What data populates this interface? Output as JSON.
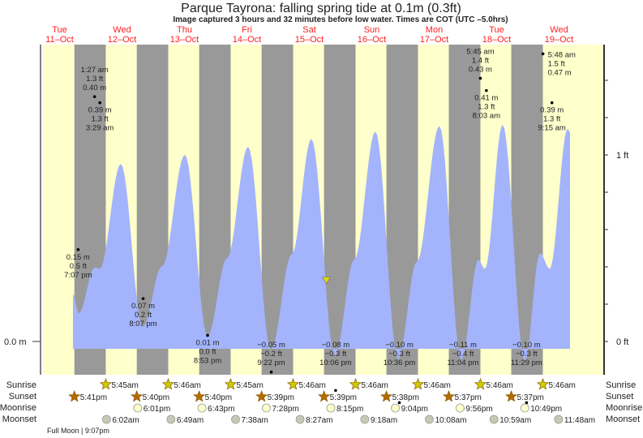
{
  "title": "Parque Tayrona: falling  spring tide at 0.1m (0.3ft)",
  "subtitle": "Image captured 3 hours and 32 minutes before low water. Times are COT (UTC –5.0hrs)",
  "colors": {
    "day": "#ffffcc",
    "night": "#999999",
    "water": "#a3b4fc",
    "day_label": "#ff2020",
    "sunrise": "#cccc00",
    "sunset": "#b36b00",
    "moonrise": "#ffffcc",
    "moonset": "#c8c8b4",
    "marker": "#e6d800"
  },
  "days": [
    {
      "name": "Tue",
      "date": "11–Oct"
    },
    {
      "name": "Wed",
      "date": "12–Oct"
    },
    {
      "name": "Thu",
      "date": "13–Oct"
    },
    {
      "name": "Fri",
      "date": "14–Oct"
    },
    {
      "name": "Sat",
      "date": "15–Oct"
    },
    {
      "name": "Sun",
      "date": "16–Oct"
    },
    {
      "name": "Mon",
      "date": "17–Oct"
    },
    {
      "name": "Tue",
      "date": "18–Oct"
    },
    {
      "name": "Wed",
      "date": "19–Oct"
    }
  ],
  "row_labels": {
    "sunrise": "Sunrise",
    "sunset": "Sunset",
    "moonrise": "Moonrise",
    "moonset": "Moonset"
  },
  "moon_phase": "Full Moon | 9:07pm",
  "chart_data": {
    "type": "area",
    "title": "Parque Tayrona: falling  spring tide at 0.1m (0.3ft)",
    "y_left_ticks": [
      {
        "value_m": 0.0,
        "label": "0.0 m"
      }
    ],
    "y_right_ticks": [
      {
        "value_ft": 1,
        "label": "1 ft"
      },
      {
        "value_ft": 0,
        "label": "0 ft"
      }
    ],
    "x_range": [
      "11-Oct 05:36",
      "20-Oct 00:00"
    ],
    "y_range_m": [
      -0.06,
      0.48
    ],
    "curve_m": [
      [
        "11-Oct 17:08",
        0.077
      ],
      [
        "11-Oct 19:20",
        0.046
      ],
      [
        "12-Oct 01:34",
        0.121
      ],
      [
        "12-Oct 03:26",
        0.119
      ],
      [
        "12-Oct 11:32",
        0.29
      ],
      [
        "12-Oct 19:57",
        0.024
      ],
      [
        "13-Oct 03:26",
        0.123
      ],
      [
        "13-Oct 12:09",
        0.305
      ],
      [
        "13-Oct 20:53",
        0.009
      ],
      [
        "14-Oct 04:22",
        0.136
      ],
      [
        "14-Oct 12:28",
        0.318
      ],
      [
        "14-Oct 21:13",
        -0.013
      ],
      [
        "15-Oct 05:18",
        0.143
      ],
      [
        "15-Oct 12:46",
        0.331
      ],
      [
        "15-Oct 21:49",
        -0.023
      ],
      [
        "16-Oct 05:18",
        0.134
      ],
      [
        "16-Oct 13:24",
        0.343
      ],
      [
        "16-Oct 22:06",
        -0.029
      ],
      [
        "17-Oct 05:18",
        0.13
      ],
      [
        "17-Oct 14:00",
        0.352
      ],
      [
        "17-Oct 22:24",
        -0.03
      ],
      [
        "18-Oct 05:00",
        0.133
      ],
      [
        "18-Oct 07:30",
        0.119
      ],
      [
        "18-Oct 14:18",
        0.354
      ],
      [
        "18-Oct 22:48",
        -0.032
      ],
      [
        "19-Oct 04:42",
        0.144
      ],
      [
        "19-Oct 08:24",
        0.119
      ],
      [
        "19-Oct 15:18",
        0.347
      ],
      [
        "19-Oct 16:12",
        0.342
      ]
    ],
    "extremes": [
      {
        "t": "11-Oct 19:07",
        "m": "0.15 m",
        "ft": "0.5 ft",
        "time": "7:07 pm",
        "h": 0.15,
        "pos": "below"
      },
      {
        "t": "12-Oct 01:27",
        "m": "0.40 m",
        "ft": "1.3 ft",
        "time": "1:27 am",
        "h": 0.4,
        "pos": "above"
      },
      {
        "t": "12-Oct 03:29",
        "m": "0.39 m",
        "ft": "1.3 ft",
        "time": "3:29 am",
        "h": 0.39,
        "pos": "below"
      },
      {
        "t": "12-Oct 20:07",
        "m": "0.07 m",
        "ft": "0.2 ft",
        "time": "8:07 pm",
        "h": 0.07,
        "pos": "below"
      },
      {
        "t": "13-Oct 20:53",
        "m": "0.01 m",
        "ft": "0.0 ft",
        "time": "8:53 pm",
        "h": 0.01,
        "pos": "below"
      },
      {
        "t": "14-Oct 21:22",
        "m": "−0.05 m",
        "ft": "−0.2 ft",
        "time": "9:22 pm",
        "h": -0.05,
        "pos": "below"
      },
      {
        "t": "15-Oct 22:06",
        "m": "−0.08 m",
        "ft": "−0.3 ft",
        "time": "10:06 pm",
        "h": -0.08,
        "pos": "below"
      },
      {
        "t": "16-Oct 22:36",
        "m": "−0.10 m",
        "ft": "−0.3 ft",
        "time": "10:36 pm",
        "h": -0.1,
        "pos": "below"
      },
      {
        "t": "17-Oct 23:04",
        "m": "−0.11 m",
        "ft": "−0.4 ft",
        "time": "11:04 pm",
        "h": -0.11,
        "pos": "below"
      },
      {
        "t": "18-Oct 05:45",
        "m": "0.43 m",
        "ft": "1.4 ft",
        "time": "5:45 am",
        "h": 0.43,
        "pos": "above"
      },
      {
        "t": "18-Oct 08:03",
        "m": "0.41 m",
        "ft": "1.3 ft",
        "time": "8:03 am",
        "h": 0.41,
        "pos": "below"
      },
      {
        "t": "18-Oct 23:29",
        "m": "−0.10 m",
        "ft": "−0.3 ft",
        "time": "11:29 pm",
        "h": -0.1,
        "pos": "below"
      },
      {
        "t": "19-Oct 05:48",
        "m": "0.47 m",
        "ft": "1.5 ft",
        "time": "5:48 am",
        "h": 0.47,
        "pos": "above"
      },
      {
        "t": "19-Oct 09:15",
        "m": "0.39 m",
        "ft": "1.3 ft",
        "time": "9:15 am",
        "h": 0.39,
        "pos": "below"
      }
    ],
    "current": {
      "t": "15-Oct 18:34",
      "h": 0.1
    },
    "sunrise": [
      [
        "12-Oct 05:45",
        "5:45am"
      ],
      [
        "13-Oct 05:46",
        "5:46am"
      ],
      [
        "14-Oct 05:45",
        "5:45am"
      ],
      [
        "15-Oct 05:46",
        "5:46am"
      ],
      [
        "16-Oct 05:46",
        "5:46am"
      ],
      [
        "17-Oct 05:46",
        "5:46am"
      ],
      [
        "18-Oct 05:46",
        "5:46am"
      ],
      [
        "19-Oct 05:46",
        "5:46am"
      ]
    ],
    "sunset": [
      [
        "11-Oct 17:41",
        "5:41pm"
      ],
      [
        "12-Oct 17:40",
        "5:40pm"
      ],
      [
        "13-Oct 17:40",
        "5:40pm"
      ],
      [
        "14-Oct 17:39",
        "5:39pm"
      ],
      [
        "15-Oct 17:39",
        "5:39pm"
      ],
      [
        "16-Oct 17:38",
        "5:38pm"
      ],
      [
        "17-Oct 17:37",
        "5:37pm"
      ],
      [
        "18-Oct 17:37",
        "5:37pm"
      ]
    ],
    "moonrise": [
      [
        "12-Oct 18:01",
        "6:01pm"
      ],
      [
        "13-Oct 18:43",
        "6:43pm"
      ],
      [
        "14-Oct 19:28",
        "7:28pm"
      ],
      [
        "15-Oct 20:15",
        "8:15pm"
      ],
      [
        "16-Oct 21:04",
        "9:04pm"
      ],
      [
        "17-Oct 21:56",
        "9:56pm"
      ],
      [
        "18-Oct 22:49",
        "10:49pm"
      ]
    ],
    "moonset": [
      [
        "12-Oct 06:02",
        "6:02am"
      ],
      [
        "13-Oct 06:49",
        "6:49am"
      ],
      [
        "14-Oct 07:38",
        "7:38am"
      ],
      [
        "15-Oct 08:27",
        "8:27am"
      ],
      [
        "16-Oct 09:18",
        "9:18am"
      ],
      [
        "17-Oct 10:08",
        "10:08am"
      ],
      [
        "18-Oct 10:59",
        "10:59am"
      ],
      [
        "19-Oct 11:48",
        "11:48am"
      ]
    ]
  }
}
